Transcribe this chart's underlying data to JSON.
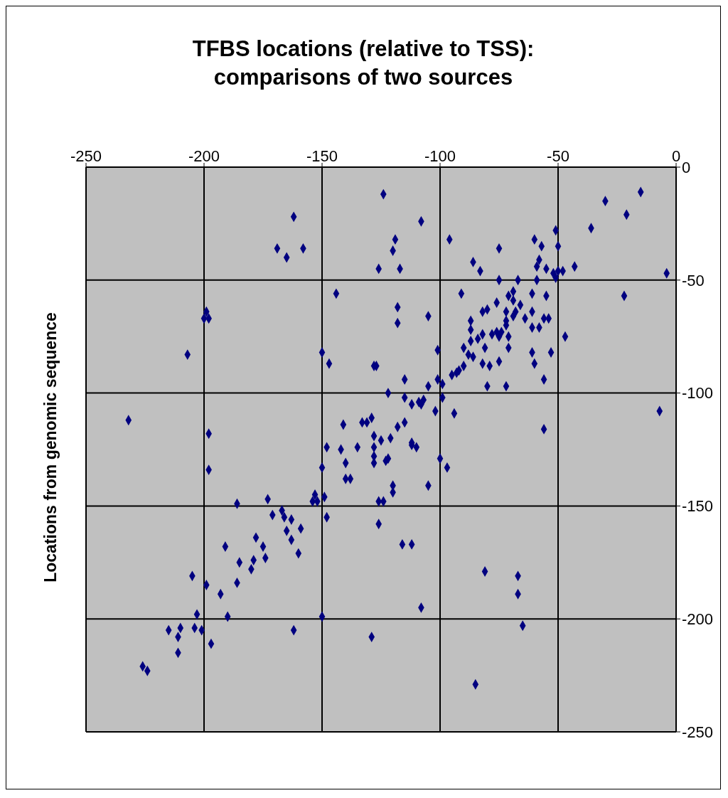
{
  "chart_data": {
    "type": "scatter",
    "title": "TFBS locations (relative to TSS): comparisons of two sources",
    "ylabel": "Locations from genomic sequence",
    "color": "#000080",
    "marker": "diamond",
    "grid": true,
    "xlim": [
      -250,
      0
    ],
    "xticks": [
      -250,
      -200,
      -150,
      -100,
      -50,
      0
    ],
    "ylim": [
      -250,
      0
    ],
    "yticks": [
      -250,
      -200,
      -150,
      -100,
      -50,
      0
    ],
    "x": [
      -124,
      -108,
      -119,
      -120,
      -126,
      -117,
      -96,
      -75,
      -86,
      -83,
      -75,
      -91,
      -118,
      -118,
      -105,
      -101,
      -115,
      -122,
      -127,
      -115,
      -109,
      -108,
      -112,
      -107,
      -102,
      -94,
      -99,
      -105,
      -101,
      -99,
      -95,
      -93,
      -92,
      -90,
      -90,
      -88,
      -86,
      -87,
      -87,
      -87,
      -84,
      -82,
      -81,
      -82,
      -79,
      -80,
      -75,
      -76,
      -74,
      -72,
      -71,
      -72,
      -82,
      -80,
      -76,
      -72,
      -69,
      -71,
      -69,
      -67,
      -66,
      -64,
      -68,
      -61,
      -61,
      -61,
      -58,
      -55,
      -56,
      -54,
      -61,
      -60,
      -56,
      -53,
      -47,
      -59,
      -58,
      -59,
      -60,
      -57,
      -51,
      -50,
      -55,
      -52,
      -50,
      -48,
      -51,
      -43,
      -36,
      -30,
      -21,
      -15,
      -4,
      -22,
      -7,
      -56,
      -69,
      -72,
      -71,
      -75,
      -78,
      -162,
      -169,
      -165,
      -158,
      -144,
      -199,
      -200,
      -198,
      -207,
      -150,
      -147,
      -128,
      -232,
      -198,
      -141,
      -131,
      -129,
      -198,
      -148,
      -142,
      -135,
      -128,
      -128,
      -128,
      -150,
      -140,
      -140,
      -138,
      -149,
      -153,
      -154,
      -152,
      -126,
      -148,
      -126,
      -186,
      -173,
      -171,
      -167,
      -166,
      -163,
      -159,
      -165,
      -163,
      -160,
      -178,
      -175,
      -174,
      -179,
      -180,
      -185,
      -186,
      -191,
      -193,
      -199,
      -205,
      -190,
      -203,
      -150,
      -162,
      -129,
      -215,
      -210,
      -211,
      -204,
      -201,
      -197,
      -211,
      -226,
      -224,
      -100,
      -97,
      -105,
      -120,
      -120,
      -124,
      -116,
      -112,
      -81,
      -67,
      -67,
      -108,
      -65,
      -85,
      -112,
      -110,
      -123,
      -122,
      -133,
      -128,
      -121,
      -125,
      -112,
      -118,
      -115
    ],
    "values": [
      -12,
      -24,
      -32,
      -37,
      -45,
      -45,
      -32,
      -36,
      -42,
      -46,
      -50,
      -56,
      -62,
      -69,
      -66,
      -81,
      -94,
      -100,
      -88,
      -102,
      -104,
      -105,
      -105,
      -103,
      -108,
      -109,
      -102,
      -97,
      -94,
      -96,
      -92,
      -91,
      -90,
      -88,
      -80,
      -83,
      -84,
      -77,
      -72,
      -68,
      -76,
      -74,
      -80,
      -87,
      -88,
      -97,
      -86,
      -73,
      -73,
      -70,
      -80,
      -97,
      -64,
      -63,
      -60,
      -64,
      -66,
      -57,
      -55,
      -50,
      -61,
      -67,
      -64,
      -56,
      -64,
      -71,
      -71,
      -57,
      -67,
      -67,
      -82,
      -87,
      -94,
      -82,
      -75,
      -50,
      -41,
      -44,
      -32,
      -35,
      -28,
      -35,
      -45,
      -47,
      -46,
      -46,
      -49,
      -44,
      -27,
      -15,
      -21,
      -11,
      -47,
      -57,
      -108,
      -116,
      -59,
      -68,
      -75,
      -75,
      -74,
      -22,
      -36,
      -40,
      -36,
      -56,
      -64,
      -67,
      -67,
      -83,
      -82,
      -87,
      -88,
      -112,
      -118,
      -114,
      -113,
      -111,
      -134,
      -124,
      -125,
      -124,
      -124,
      -128,
      -131,
      -133,
      -131,
      -138,
      -138,
      -146,
      -145,
      -148,
      -148,
      -148,
      -155,
      -158,
      -149,
      -147,
      -154,
      -152,
      -155,
      -156,
      -160,
      -161,
      -165,
      -171,
      -164,
      -168,
      -173,
      -174,
      -178,
      -175,
      -184,
      -168,
      -189,
      -185,
      -181,
      -199,
      -198,
      -199,
      -205,
      -208,
      -205,
      -204,
      -208,
      -204,
      -205,
      -211,
      -215,
      -221,
      -223,
      -129,
      -133,
      -141,
      -141,
      -144,
      -148,
      -167,
      -167,
      -179,
      -181,
      -189,
      -195,
      -203,
      -229,
      -123,
      -124,
      -130,
      -129,
      -113,
      -119,
      -120,
      -121,
      -122,
      -115,
      -113
    ]
  }
}
